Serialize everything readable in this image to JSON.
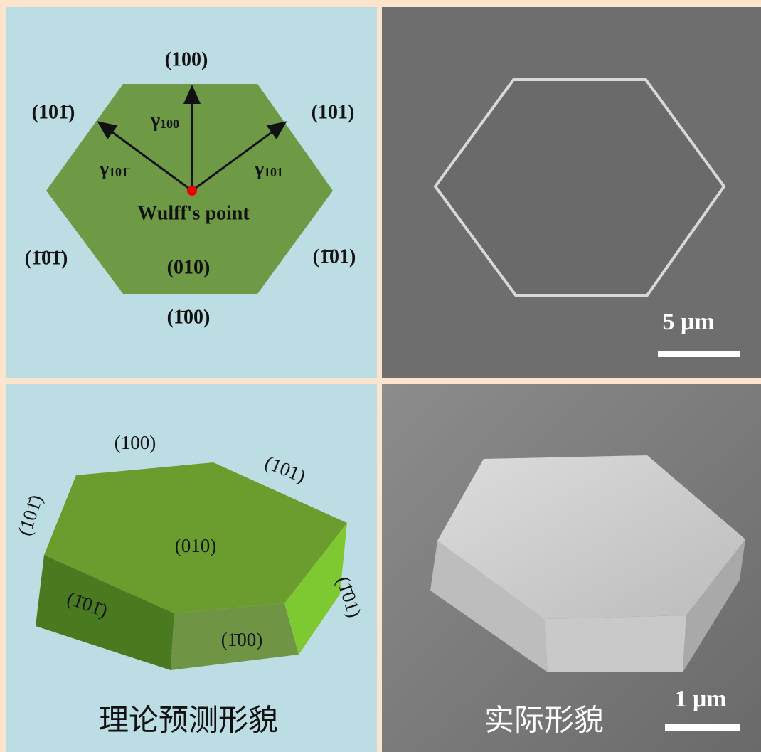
{
  "panels": {
    "wulff": {
      "labels": [
        "(100)",
        "(101̄)",
        "(101)",
        "(1̄0̄1̄)",
        "(010)",
        "(1̄01)",
        "(1̄00)"
      ],
      "gammas": [
        {
          "symbol": "γ",
          "subscript": "100"
        },
        {
          "symbol": "γ",
          "subscript": "101̄"
        },
        {
          "symbol": "γ",
          "subscript": "101"
        }
      ],
      "point": "Wulff's point"
    },
    "sem_top": {
      "scale": "5 μm"
    },
    "model": {
      "labels": [
        "(100)",
        "(101)",
        "(101̄)",
        "(010)",
        "(1̄01̄)",
        "(1̄00)",
        "(1̄01)"
      ],
      "caption": "理论预测形貌"
    },
    "sem_bottom": {
      "caption": "实际形貌",
      "scale": "1 μm"
    }
  }
}
